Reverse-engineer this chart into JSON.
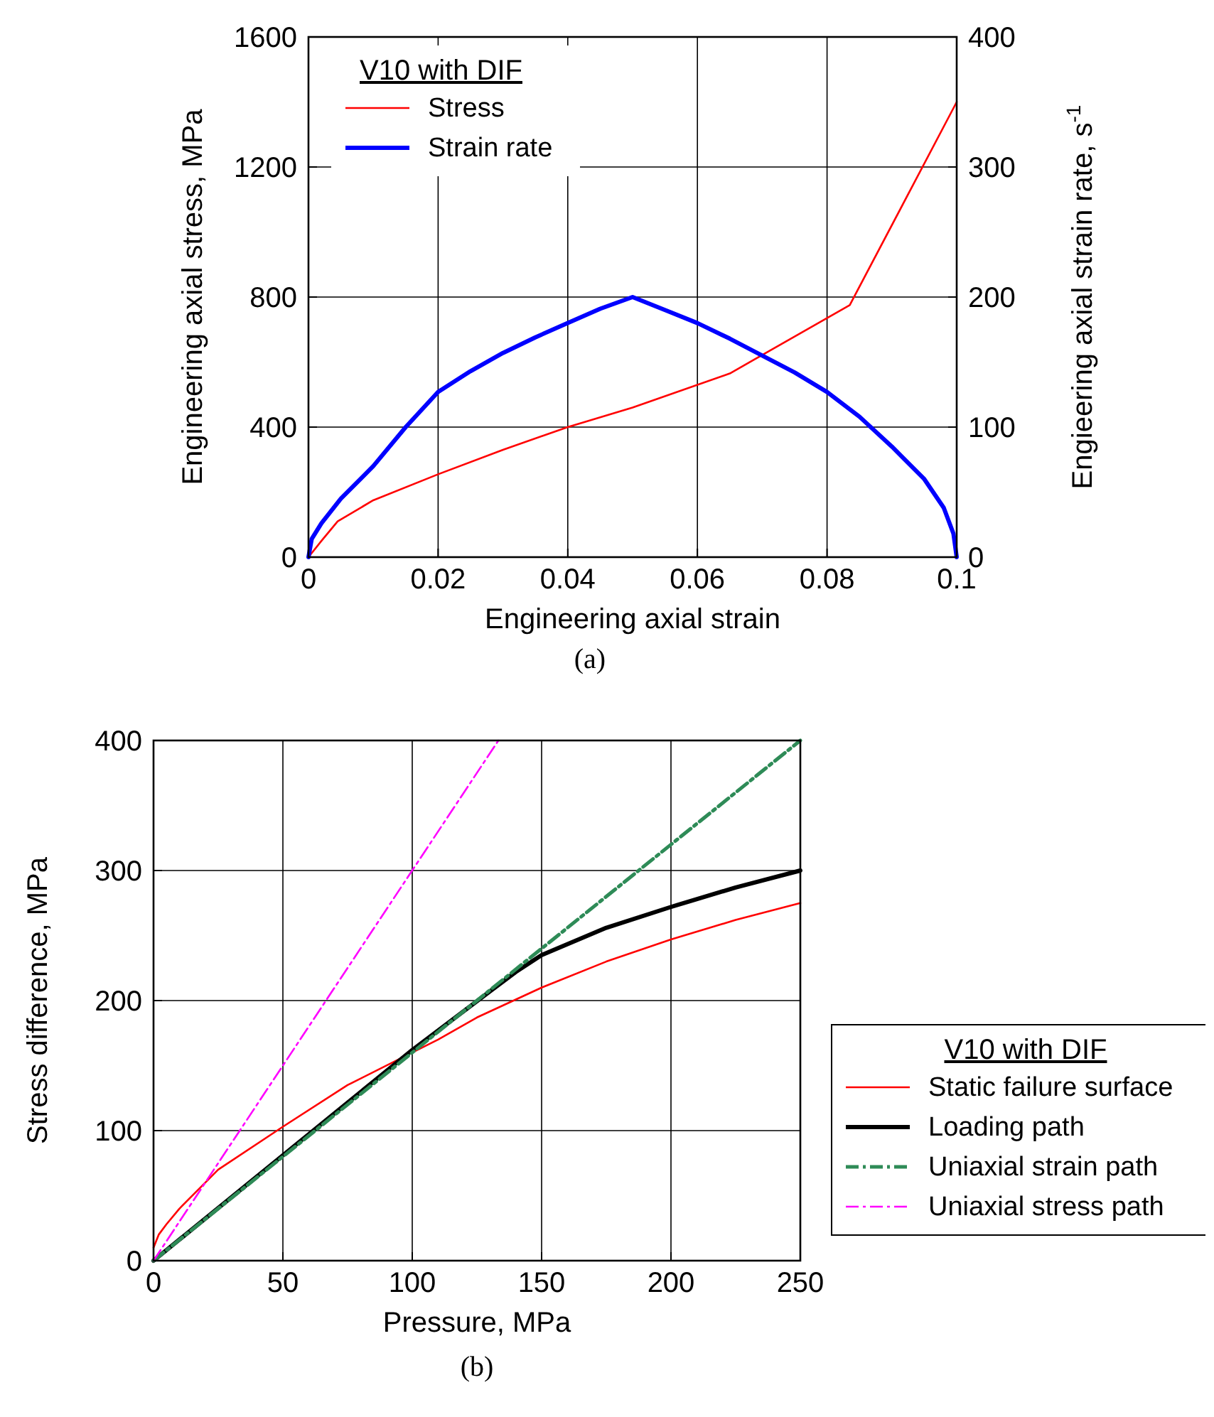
{
  "chart_data": [
    {
      "type": "line",
      "xlabel": "Engineering axial strain",
      "ylabel": "Engineering axial stress, MPa",
      "y2label": "Engieering axial strain rate, s$^{-1}$",
      "legend_title": "V10 with DIF",
      "legend": "top left",
      "grid": true,
      "annotations": [
        "(a)"
      ],
      "xlim": [
        0,
        0.1
      ],
      "xticks": [
        0,
        0.02,
        0.04,
        0.06,
        0.08,
        0.1
      ],
      "ylim": [
        0,
        1600
      ],
      "yticks": [
        0,
        400,
        800,
        1200,
        1600
      ],
      "y2lim": [
        0,
        400
      ],
      "y2ticks": [
        0,
        100,
        200,
        300,
        400
      ],
      "series": [
        {
          "name": "Stress",
          "color": "#ff0000",
          "line_style": "solid",
          "x": [
            0,
            0.002,
            0.0045,
            0.01,
            0.02,
            0.03,
            0.04,
            0.05,
            0.065,
            0.0835,
            0.1
          ],
          "values": [
            0,
            50,
            110,
            175,
            255,
            330,
            400,
            460,
            565,
            775,
            1400
          ]
        },
        {
          "name": "Strain rate",
          "color": "#0000ff",
          "line_style": "solid",
          "axis": "y2",
          "x": [
            0,
            0.0005,
            0.002,
            0.005,
            0.01,
            0.015,
            0.02,
            0.025,
            0.03,
            0.035,
            0.04,
            0.045,
            0.05,
            0.055,
            0.06,
            0.065,
            0.07,
            0.075,
            0.08,
            0.085,
            0.09,
            0.095,
            0.098,
            0.0995,
            0.1
          ],
          "values": [
            0,
            14,
            26,
            45,
            70,
            100,
            127,
            143,
            157,
            169,
            180,
            191,
            200,
            190,
            180,
            168,
            155,
            142,
            127,
            108,
            85,
            60,
            38,
            18,
            0
          ]
        }
      ]
    },
    {
      "type": "line",
      "xlabel": "Pressure, MPa",
      "ylabel": "Stress difference, MPa",
      "legend_title": "V10 with DIF",
      "legend": "right",
      "grid": true,
      "annotations": [
        "(b)"
      ],
      "xlim": [
        0,
        250
      ],
      "xticks": [
        0,
        50,
        100,
        150,
        200,
        250
      ],
      "ylim": [
        0,
        400
      ],
      "yticks": [
        0,
        100,
        200,
        300,
        400
      ],
      "series": [
        {
          "name": "Static failure surface",
          "color": "#ff0000",
          "line_style": "solid",
          "x": [
            0,
            2,
            5,
            10,
            25,
            50,
            75,
            100,
            110,
            125,
            150,
            175,
            200,
            225,
            250
          ],
          "values": [
            10,
            20,
            28,
            40,
            70,
            103,
            135,
            160,
            170,
            187,
            210,
            230,
            247,
            262,
            275
          ]
        },
        {
          "name": "Loading path",
          "color": "#000000",
          "line_style": "solid",
          "x": [
            0,
            50,
            100,
            120,
            130,
            140,
            150,
            175,
            200,
            225,
            250
          ],
          "values": [
            0,
            81,
            162,
            192,
            207,
            222,
            235,
            256,
            272,
            287,
            300
          ]
        },
        {
          "name": "Uniaxial strain path",
          "color": "#2e8b57",
          "line_style": "dashed",
          "x": [
            0,
            250
          ],
          "values": [
            0,
            400
          ]
        },
        {
          "name": "Uniaxial stress path",
          "color": "#ff00ff",
          "line_style": "dashed",
          "x": [
            0,
            133.3
          ],
          "values": [
            0,
            400
          ]
        }
      ]
    }
  ]
}
